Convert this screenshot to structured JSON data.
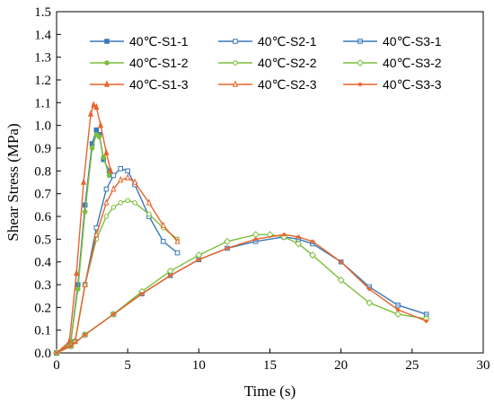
{
  "chart_data": {
    "type": "line",
    "xlabel": "Time (s)",
    "ylabel": "Shear Stress (MPa)",
    "xlim": [
      0,
      30
    ],
    "ylim": [
      0,
      1.5
    ],
    "xticks": [
      "0",
      "5",
      "10",
      "15",
      "20",
      "25",
      "30"
    ],
    "yticks": [
      "0.0",
      "0.1",
      "0.2",
      "0.3",
      "0.4",
      "0.5",
      "0.6",
      "0.7",
      "0.8",
      "0.9",
      "1.0",
      "1.1",
      "1.2",
      "1.3",
      "1.4",
      "1.5"
    ],
    "grid": false,
    "legend": {
      "position": "top",
      "columns": 3
    },
    "series": [
      {
        "name": "40℃-S1-1",
        "color": "#3a78b8",
        "marker": "square-filled",
        "x": [
          0,
          1.0,
          1.5,
          2.0,
          2.5,
          2.8,
          3.0,
          3.3,
          3.7
        ],
        "y": [
          0,
          0.05,
          0.3,
          0.65,
          0.92,
          0.98,
          0.96,
          0.85,
          0.8
        ]
      },
      {
        "name": "40℃-S1-2",
        "color": "#7cbf3a",
        "marker": "circle-filled",
        "x": [
          0,
          1.0,
          1.5,
          2.0,
          2.5,
          2.8,
          3.0,
          3.3,
          3.7
        ],
        "y": [
          0,
          0.05,
          0.28,
          0.62,
          0.9,
          0.96,
          0.95,
          0.86,
          0.78
        ]
      },
      {
        "name": "40℃-S1-3",
        "color": "#e8642a",
        "marker": "triangle-filled",
        "x": [
          0,
          0.9,
          1.4,
          1.9,
          2.4,
          2.6,
          2.8,
          3.1,
          3.5,
          3.8
        ],
        "y": [
          0,
          0.05,
          0.35,
          0.75,
          1.05,
          1.09,
          1.08,
          1.0,
          0.88,
          0.8
        ]
      },
      {
        "name": "40℃-S2-1",
        "color": "#3a78b8",
        "marker": "square-open",
        "x": [
          0,
          1.3,
          2.0,
          2.8,
          3.5,
          4.0,
          4.5,
          5.0,
          5.5,
          6.5,
          7.5,
          8.5
        ],
        "y": [
          0,
          0.05,
          0.3,
          0.55,
          0.72,
          0.78,
          0.81,
          0.8,
          0.74,
          0.6,
          0.49,
          0.44
        ]
      },
      {
        "name": "40℃-S2-2",
        "color": "#7cbf3a",
        "marker": "circle-open",
        "x": [
          0,
          1.3,
          2.0,
          2.8,
          3.5,
          4.0,
          4.5,
          5.0,
          5.5,
          6.5,
          7.5,
          8.5
        ],
        "y": [
          0,
          0.05,
          0.3,
          0.5,
          0.6,
          0.64,
          0.66,
          0.67,
          0.66,
          0.61,
          0.55,
          0.5
        ]
      },
      {
        "name": "40℃-S2-3",
        "color": "#e8642a",
        "marker": "triangle-open",
        "x": [
          0,
          1.3,
          2.0,
          2.8,
          3.5,
          4.0,
          4.5,
          5.0,
          5.5,
          6.5,
          7.5,
          8.5
        ],
        "y": [
          0,
          0.05,
          0.3,
          0.52,
          0.66,
          0.72,
          0.76,
          0.77,
          0.75,
          0.66,
          0.56,
          0.49
        ]
      },
      {
        "name": "40℃-S3-1",
        "color": "#3a78b8",
        "marker": "square-cross",
        "x": [
          0,
          1.0,
          2.0,
          4.0,
          6.0,
          8.0,
          10.0,
          12.0,
          14.0,
          16.0,
          17.0,
          18.0,
          20.0,
          22.0,
          24.0,
          26.0
        ],
        "y": [
          0,
          0.03,
          0.08,
          0.17,
          0.26,
          0.34,
          0.41,
          0.46,
          0.49,
          0.51,
          0.5,
          0.48,
          0.4,
          0.29,
          0.21,
          0.17
        ]
      },
      {
        "name": "40℃-S3-2",
        "color": "#7cbf3a",
        "marker": "diamond-open",
        "x": [
          0,
          1.0,
          2.0,
          4.0,
          6.0,
          8.0,
          10.0,
          12.0,
          14.0,
          15.0,
          16.0,
          17.0,
          18.0,
          20.0,
          22.0,
          24.0,
          26.0
        ],
        "y": [
          0,
          0.03,
          0.08,
          0.17,
          0.27,
          0.36,
          0.43,
          0.49,
          0.52,
          0.52,
          0.51,
          0.48,
          0.43,
          0.32,
          0.22,
          0.17,
          0.15
        ]
      },
      {
        "name": "40℃-S3-3",
        "color": "#e8642a",
        "marker": "star",
        "x": [
          0,
          1.0,
          2.0,
          4.0,
          6.0,
          8.0,
          10.0,
          12.0,
          14.0,
          16.0,
          17.0,
          18.0,
          20.0,
          22.0,
          24.0,
          26.0
        ],
        "y": [
          0,
          0.03,
          0.08,
          0.17,
          0.26,
          0.34,
          0.41,
          0.46,
          0.5,
          0.52,
          0.51,
          0.49,
          0.4,
          0.28,
          0.19,
          0.14
        ]
      }
    ]
  }
}
